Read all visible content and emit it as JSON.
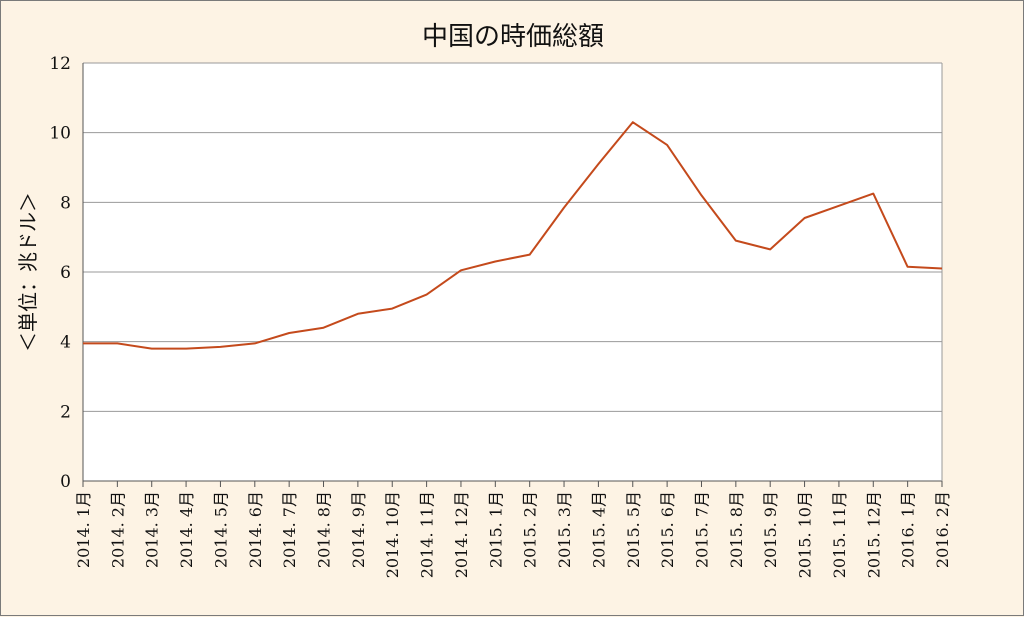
{
  "chart_data": {
    "type": "line",
    "title": "中国の時価総額",
    "xlabel": "",
    "ylabel": "＜単位：兆ドル＞",
    "ylim": [
      0,
      12
    ],
    "yticks": [
      "0",
      "2",
      "4",
      "6",
      "8",
      "10",
      "12"
    ],
    "grid": true,
    "categories": [
      "2014. 1月",
      "2014. 2月",
      "2014. 3月",
      "2014. 4月",
      "2014. 5月",
      "2014. 6月",
      "2014. 7月",
      "2014. 8月",
      "2014. 9月",
      "2014. 10月",
      "2014. 11月",
      "2014. 12月",
      "2015. 1月",
      "2015. 2月",
      "2015. 3月",
      "2015. 4月",
      "2015. 5月",
      "2015. 6月",
      "2015. 7月",
      "2015. 8月",
      "2015. 9月",
      "2015. 10月",
      "2015. 11月",
      "2015. 12月",
      "2016. 1月",
      "2016. 2月"
    ],
    "series": [
      {
        "values": [
          3.95,
          3.95,
          3.8,
          3.8,
          3.85,
          3.95,
          4.25,
          4.4,
          4.8,
          4.95,
          5.35,
          6.05,
          6.3,
          6.5,
          7.85,
          9.1,
          10.3,
          9.65,
          8.2,
          6.9,
          6.65,
          7.55,
          7.9,
          8.25,
          6.15,
          6.1
        ],
        "color": "#c44a1c"
      }
    ],
    "colors": {
      "background": "#fdf3e4",
      "plot_background": "#ffffff",
      "grid": "#9a9a9a",
      "line": "#c44a1c"
    }
  }
}
